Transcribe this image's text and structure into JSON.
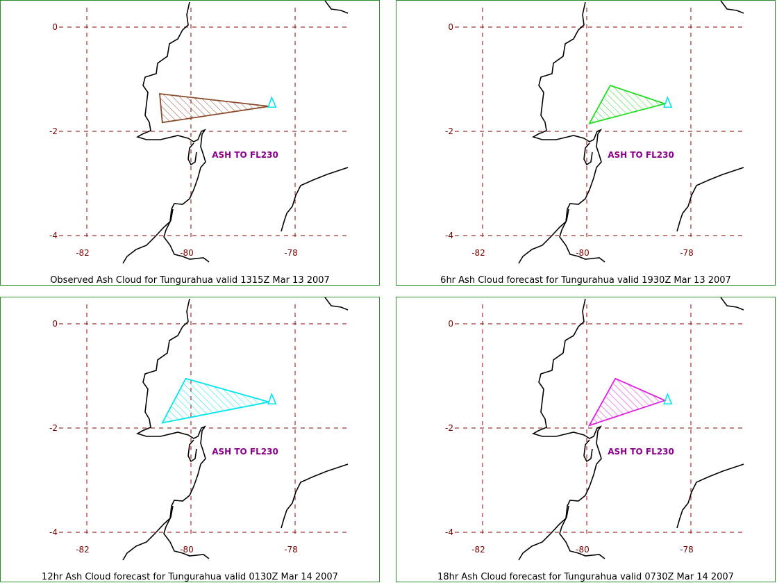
{
  "map_panels": [
    {
      "caption": "Observed Ash Cloud for Tungurahua valid 1315Z Mar 13 2007",
      "ash_label": "ASH TO FL230",
      "cloud_color": "#8b4a2b",
      "cloud": [
        [
          -80.6,
          -1.28
        ],
        [
          -78.5,
          -1.52
        ],
        [
          -80.55,
          -1.83
        ]
      ]
    },
    {
      "caption": "6hr Ash Cloud forecast for Tungurahua valid 1930Z Mar 13 2007",
      "ash_label": "ASH TO FL230",
      "cloud_color": "#22dd22",
      "cloud": [
        [
          -79.55,
          -1.12
        ],
        [
          -78.5,
          -1.47
        ],
        [
          -79.95,
          -1.85
        ]
      ]
    },
    {
      "caption": "12hr Ash Cloud forecast for Tungurahua valid 0130Z Mar 14 2007",
      "ash_label": "ASH TO FL230",
      "cloud_color": "#00e5ee",
      "cloud": [
        [
          -80.1,
          -1.05
        ],
        [
          -78.5,
          -1.5
        ],
        [
          -80.55,
          -1.9
        ]
      ]
    },
    {
      "caption": "18hr Ash Cloud forecast for Tungurahua valid 0730Z Mar 14 2007",
      "ash_label": "ASH TO FL230",
      "cloud_color": "#e020e0",
      "cloud": [
        [
          -79.45,
          -1.05
        ],
        [
          -78.5,
          -1.47
        ],
        [
          -79.95,
          -1.95
        ]
      ]
    }
  ],
  "axes": {
    "lon_ticks": [
      {
        "value": -82,
        "label": "-82"
      },
      {
        "value": -80,
        "label": "-80"
      },
      {
        "value": -78,
        "label": "-78"
      }
    ],
    "lat_ticks": [
      {
        "value": 0,
        "label": "0"
      },
      {
        "value": -2,
        "label": "-2"
      },
      {
        "value": -4,
        "label": "-4"
      }
    ]
  },
  "volcano": {
    "name": "Tungurahua",
    "marker_color": "#00e5ee"
  },
  "colors": {
    "grid": "#8b0000",
    "tick_label": "#7a0000",
    "coast": "#000000",
    "frame": "#2e8b2e",
    "ash_label": "#8b008b"
  }
}
